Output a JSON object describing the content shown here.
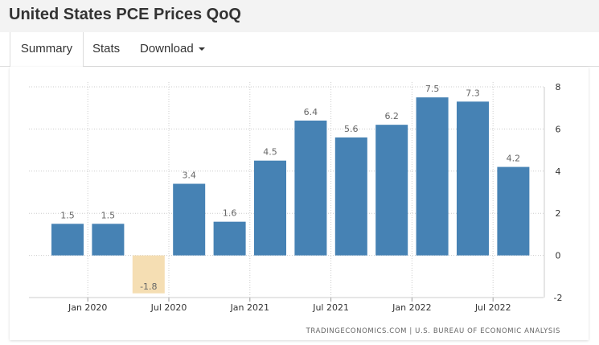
{
  "header": {
    "title": "United States PCE Prices QoQ"
  },
  "tabs": [
    {
      "label": "Summary",
      "active": true
    },
    {
      "label": "Stats",
      "active": false
    },
    {
      "label": "Download",
      "active": false
    }
  ],
  "colors": {
    "positive": "#4682b4",
    "negative": "#f5deb3",
    "grid": "#cccccc"
  },
  "chart_data": {
    "type": "bar",
    "title": "United States PCE Prices QoQ",
    "categories": [
      "2019 Q4",
      "2020 Q1",
      "2020 Q2",
      "2020 Q3",
      "2020 Q4",
      "2021 Q1",
      "2021 Q2",
      "2021 Q3",
      "2021 Q4",
      "2022 Q1",
      "2022 Q2",
      "2022 Q3"
    ],
    "values": [
      1.5,
      1.5,
      -1.8,
      3.4,
      1.6,
      4.5,
      6.4,
      5.6,
      6.2,
      7.5,
      7.3,
      4.2
    ],
    "x_tick_labels": [
      "Jan 2020",
      "Jul 2020",
      "Jan 2021",
      "Jul 2021",
      "Jan 2022",
      "Jul 2022"
    ],
    "y_ticks": [
      8,
      6,
      4,
      2,
      0,
      -2
    ],
    "ylim": [
      -2,
      8
    ],
    "ylabel": "",
    "xlabel": "",
    "y_axis_side": "right",
    "grid": true,
    "source": "TRADINGECONOMICS.COM | U.S. BUREAU OF ECONOMIC ANALYSIS"
  }
}
